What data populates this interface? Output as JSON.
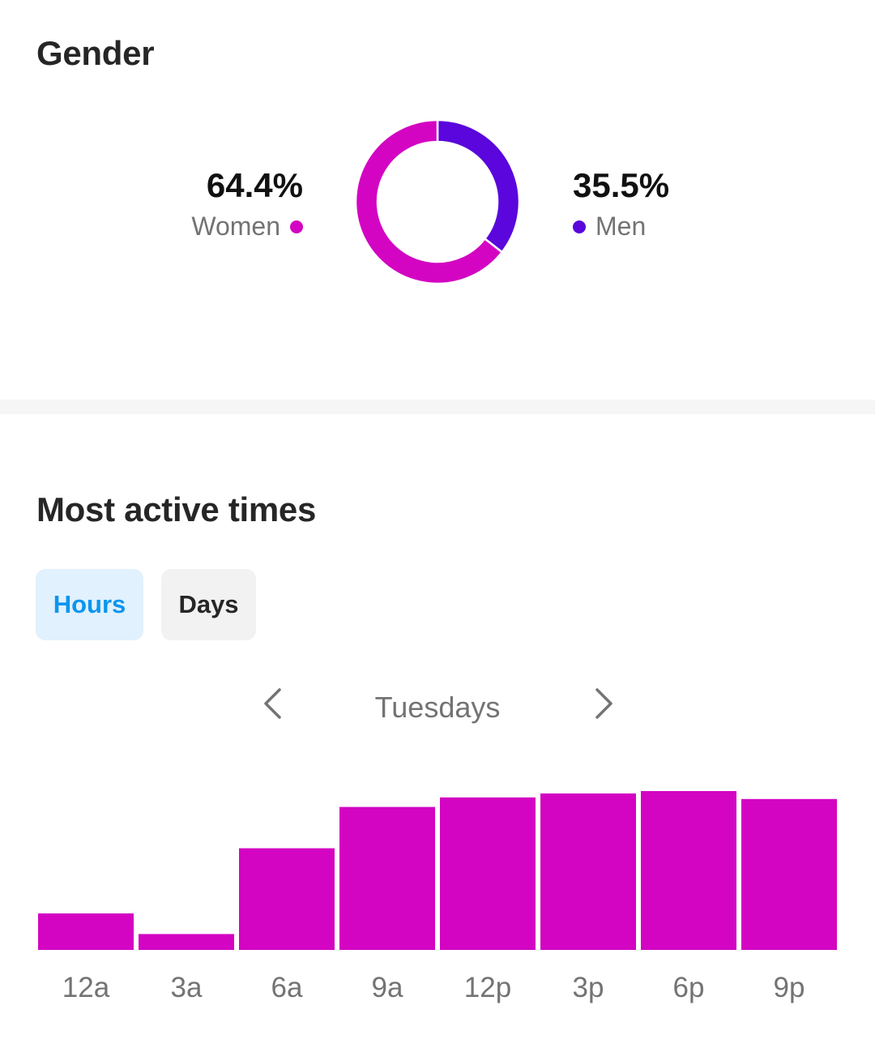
{
  "gender": {
    "title": "Gender",
    "women": {
      "percent": "64.4%",
      "label": "Women",
      "value": 64.4,
      "color": "#d305c2"
    },
    "men": {
      "percent": "35.5%",
      "label": "Men",
      "value": 35.5,
      "color": "#5a06dc"
    }
  },
  "active_times": {
    "title": "Most active times",
    "tabs": [
      {
        "label": "Hours",
        "selected": true
      },
      {
        "label": "Days",
        "selected": false
      }
    ],
    "day_selector": {
      "label": "Tuesdays",
      "prev_icon": "chevron-left-icon",
      "next_icon": "chevron-right-icon"
    }
  },
  "chart_data": [
    {
      "type": "pie",
      "categories": [
        "Women",
        "Men"
      ],
      "values": [
        64.4,
        35.5
      ],
      "colors": [
        "#d305c2",
        "#5a06dc"
      ],
      "style": "donut"
    },
    {
      "type": "bar",
      "categories": [
        "12a",
        "3a",
        "6a",
        "9a",
        "12p",
        "3p",
        "6p",
        "9p"
      ],
      "values": [
        23,
        10,
        64,
        90,
        96,
        98.5,
        100,
        95
      ],
      "ylim": [
        0,
        100
      ],
      "color": "#d305c2",
      "grid": false
    }
  ]
}
